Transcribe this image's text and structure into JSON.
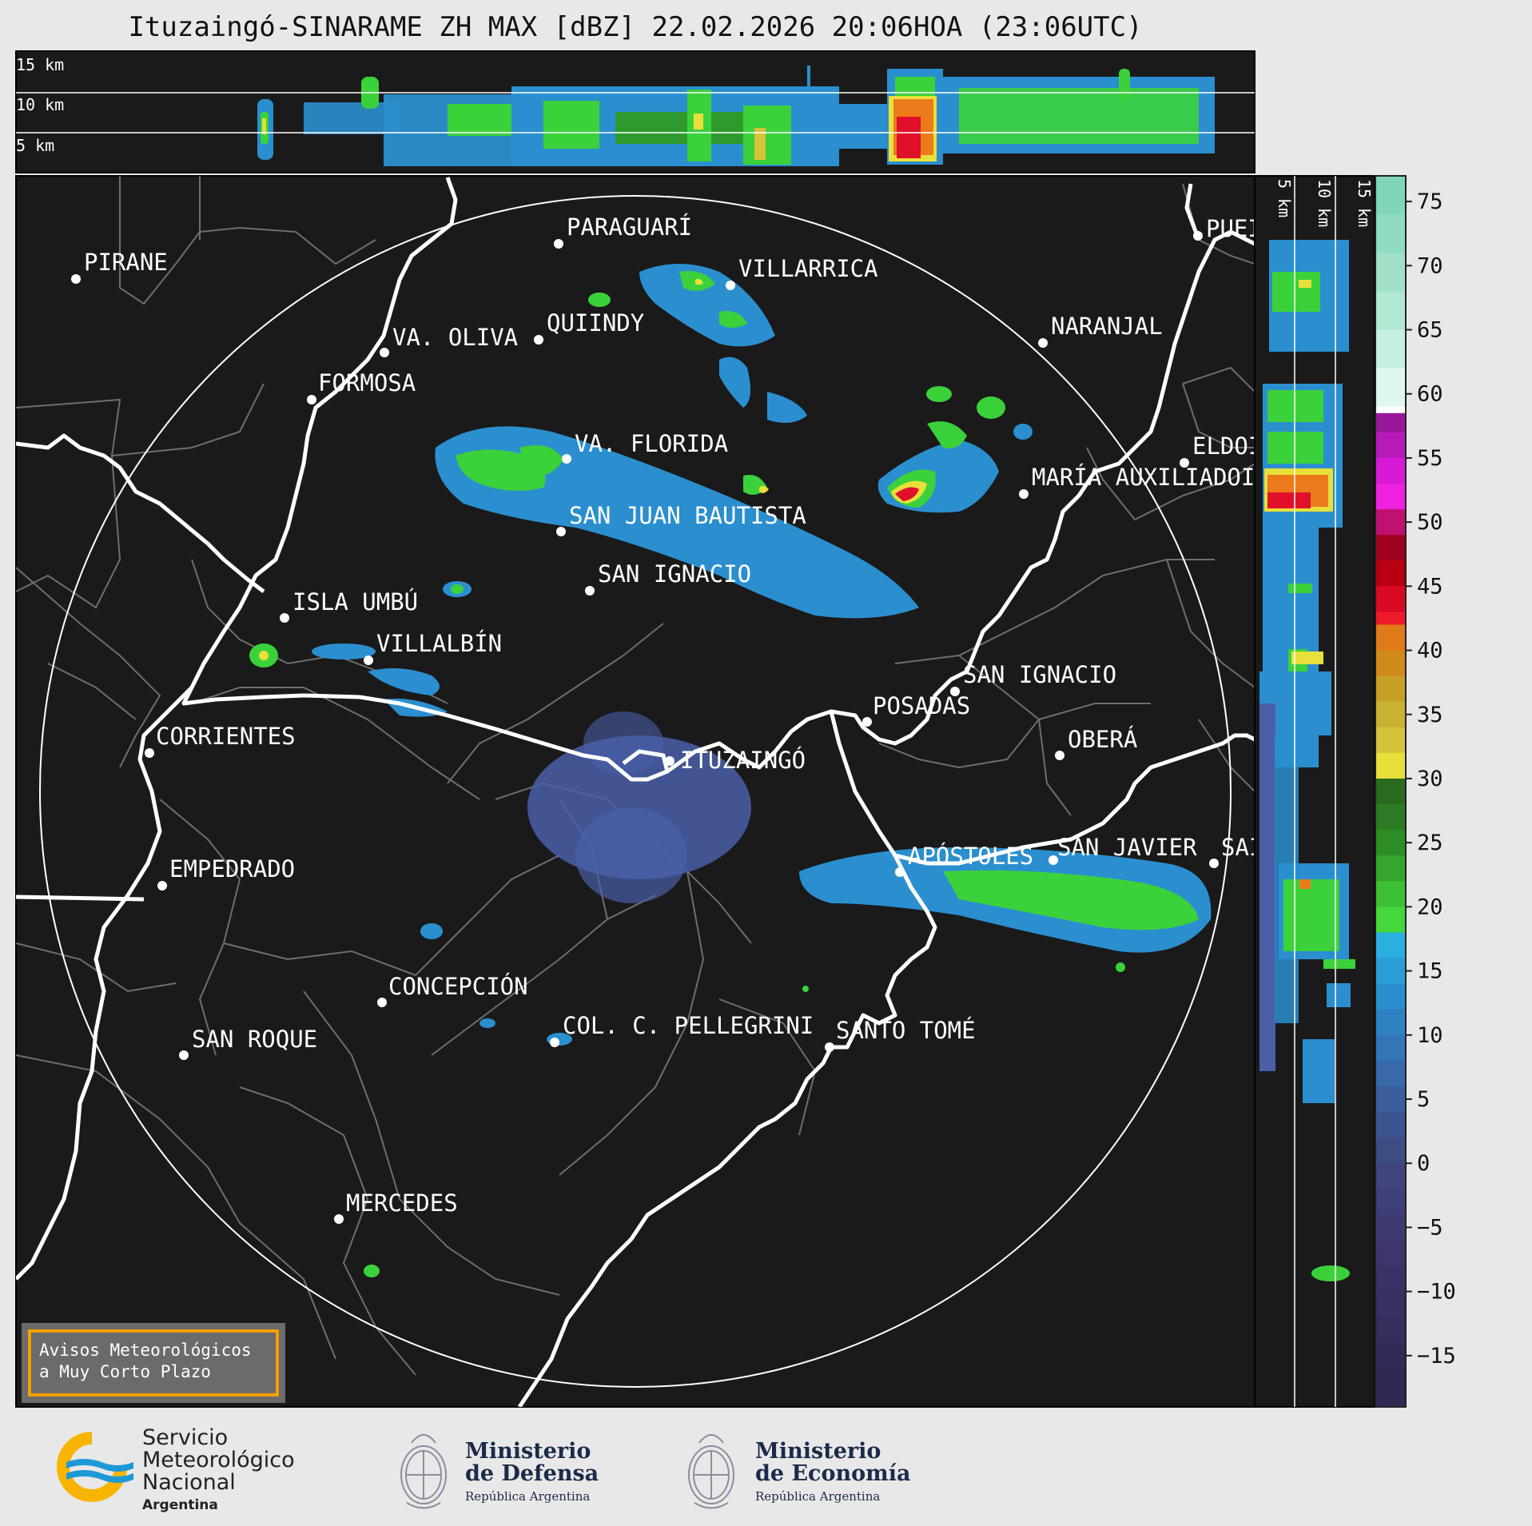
{
  "title": "Ituzaingó-SINARAME ZH MAX [dBZ] 22.02.2026 20:06HOA (23:06UTC)",
  "top_panel": {
    "height_labels": [
      "15 km",
      "10 km",
      "5 km"
    ]
  },
  "right_panel": {
    "height_labels": [
      "5 km",
      "10 km",
      "15 km"
    ]
  },
  "colorbar": {
    "unit": "dBZ",
    "ticks": [
      "75",
      "70",
      "65",
      "60",
      "55",
      "50",
      "45",
      "40",
      "35",
      "30",
      "25",
      "20",
      "15",
      "10",
      "5",
      "0",
      "−5",
      "−10",
      "−15"
    ]
  },
  "cities": [
    {
      "name": "PIRANE"
    },
    {
      "name": "PARAGUARÍ"
    },
    {
      "name": "VILLARRICA"
    },
    {
      "name": "QUIINDY"
    },
    {
      "name": "VA. OLIVA"
    },
    {
      "name": "FORMOSA"
    },
    {
      "name": "NARANJAL"
    },
    {
      "name": "PUEI"
    },
    {
      "name": "ELDOI"
    },
    {
      "name": "MARÍA AUXILIADOI"
    },
    {
      "name": "VA. FLORIDA"
    },
    {
      "name": "SAN JUAN BAUTISTA"
    },
    {
      "name": "SAN IGNACIO"
    },
    {
      "name": "ISLA UMBÚ"
    },
    {
      "name": "VILLALBÍN"
    },
    {
      "name": "SAN IGNACIO"
    },
    {
      "name": "POSADAS"
    },
    {
      "name": "OBERÁ"
    },
    {
      "name": "CORRIENTES"
    },
    {
      "name": "ITUZAINGÓ"
    },
    {
      "name": "APÓSTOLES"
    },
    {
      "name": "SAN JAVIER"
    },
    {
      "name": "SAI"
    },
    {
      "name": "EMPEDRADO"
    },
    {
      "name": "CONCEPCIÓN"
    },
    {
      "name": "COL. C. PELLEGRINI"
    },
    {
      "name": "SANTO TOMÉ"
    },
    {
      "name": "SAN ROQUE"
    },
    {
      "name": "MERCEDES"
    }
  ],
  "warning": {
    "line1": "Avisos Meteorológicos",
    "line2": "a Muy Corto Plazo"
  },
  "logos": {
    "smn": {
      "line1": "Servicio",
      "line2": "Meteorológico",
      "line3": "Nacional",
      "line4": "Argentina"
    },
    "defensa": {
      "line1": "Ministerio",
      "line2": "de Defensa",
      "line3": "República Argentina"
    },
    "economia": {
      "line1": "Ministerio",
      "line2": "de Economía",
      "line3": "República Argentina"
    }
  },
  "colors": {
    "background": "#1a1a1a",
    "outer": "#e8e8e8",
    "warning_border": "#f5a000",
    "smn_yellow": "#f7b500",
    "smn_blue": "#1d9ad6"
  }
}
